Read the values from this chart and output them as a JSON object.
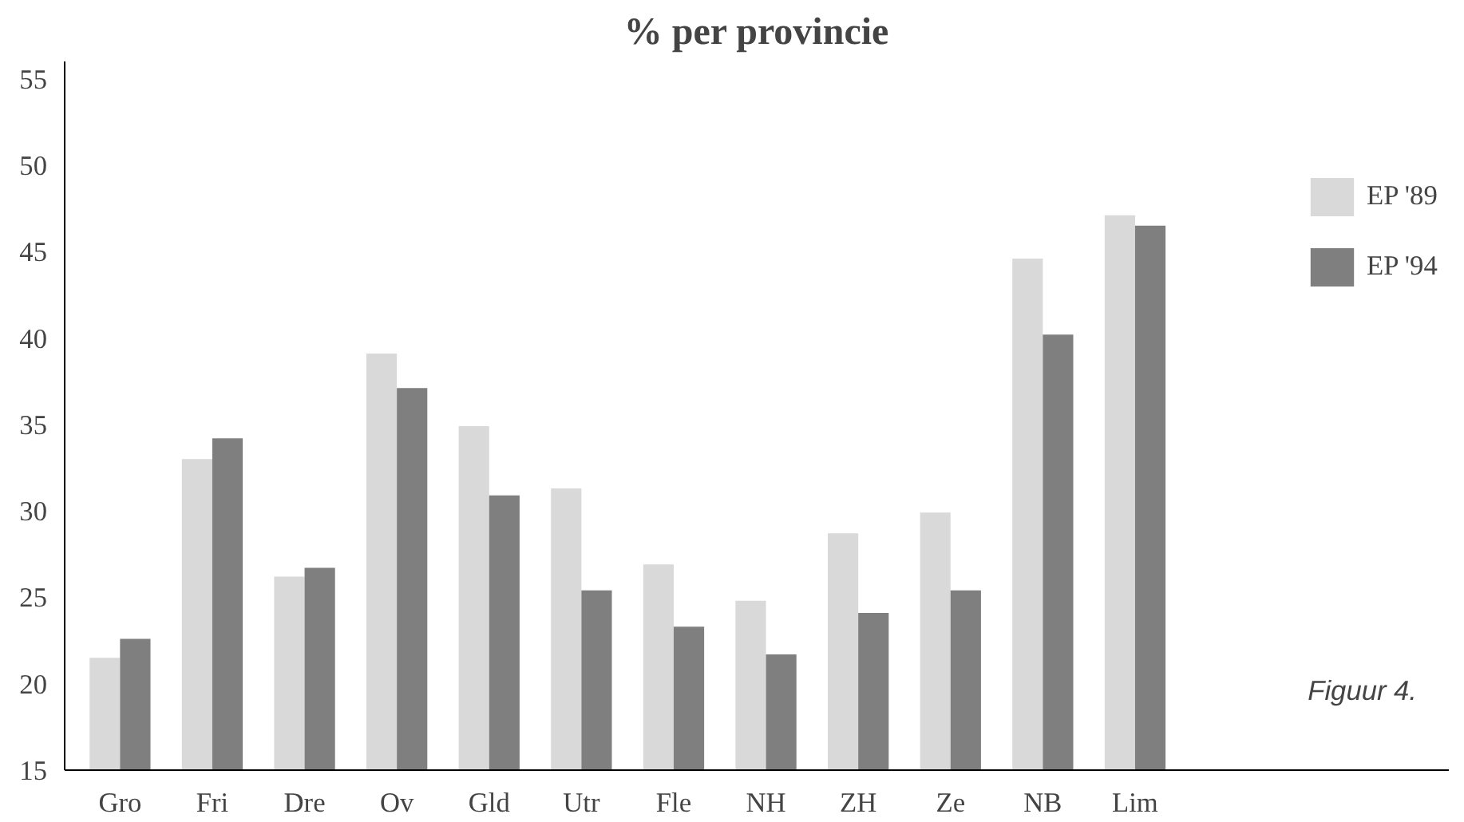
{
  "chart_data": {
    "type": "bar",
    "title": "% per provincie",
    "categories": [
      "Gro",
      "Fri",
      "Dre",
      "Ov",
      "Gld",
      "Utr",
      "Fle",
      "NH",
      "ZH",
      "Ze",
      "NB",
      "Lim"
    ],
    "series": [
      {
        "name": "EP '89",
        "color": "#d9d9d9",
        "values": [
          21.5,
          33.0,
          26.2,
          39.1,
          34.9,
          31.3,
          26.9,
          24.8,
          28.7,
          29.9,
          44.6,
          47.1
        ]
      },
      {
        "name": "EP '94",
        "color": "#7f7f7f",
        "values": [
          22.6,
          34.2,
          26.7,
          37.1,
          30.9,
          25.4,
          23.3,
          21.7,
          24.1,
          25.4,
          40.2,
          46.5
        ]
      }
    ],
    "ylim": [
      15,
      56
    ],
    "yticks": [
      15,
      20,
      25,
      30,
      35,
      40,
      45,
      50,
      55
    ],
    "grid": false,
    "legend": "right",
    "annotations": [
      "Figuur 4."
    ]
  }
}
